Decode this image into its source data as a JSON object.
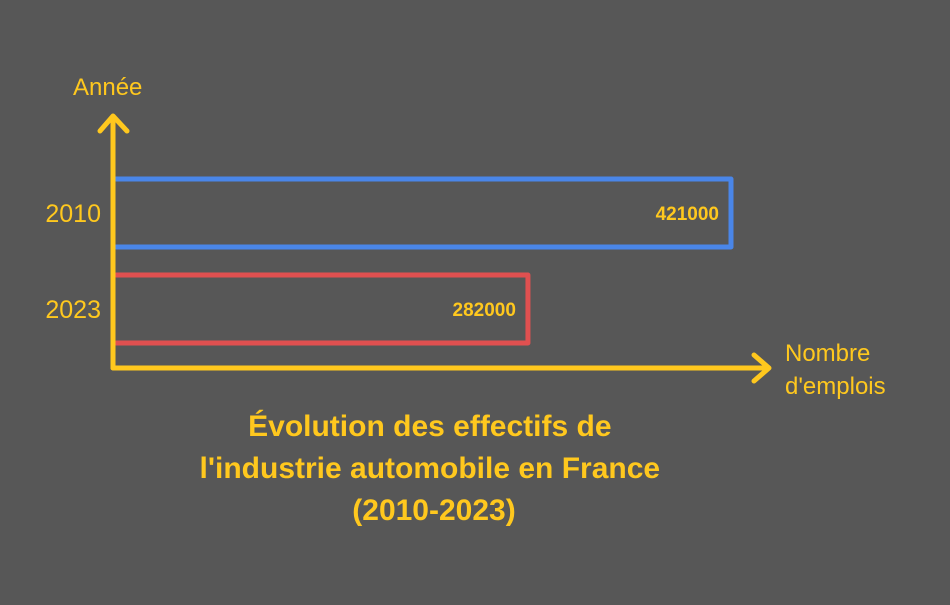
{
  "colors": {
    "background": "#575757",
    "axis": "#FFC81E",
    "text": "#FFC81E",
    "bar_2010": "#4A86E8",
    "bar_2023": "#E05050"
  },
  "chart_data": {
    "type": "bar",
    "orientation": "horizontal",
    "style": "hand-drawn outline bars",
    "categories": [
      "2010",
      "2023"
    ],
    "values": [
      421000,
      282000
    ],
    "data_labels": [
      "421000",
      "282000"
    ],
    "title_lines": [
      "Évolution des effectifs de",
      "l'industrie automobile en France",
      "(2010-2023)"
    ],
    "xlabel_lines": [
      "Nombre",
      "d'emplois"
    ],
    "ylabel": "Année",
    "xlim": [
      0,
      421000
    ],
    "grid": false,
    "legend": "none"
  }
}
